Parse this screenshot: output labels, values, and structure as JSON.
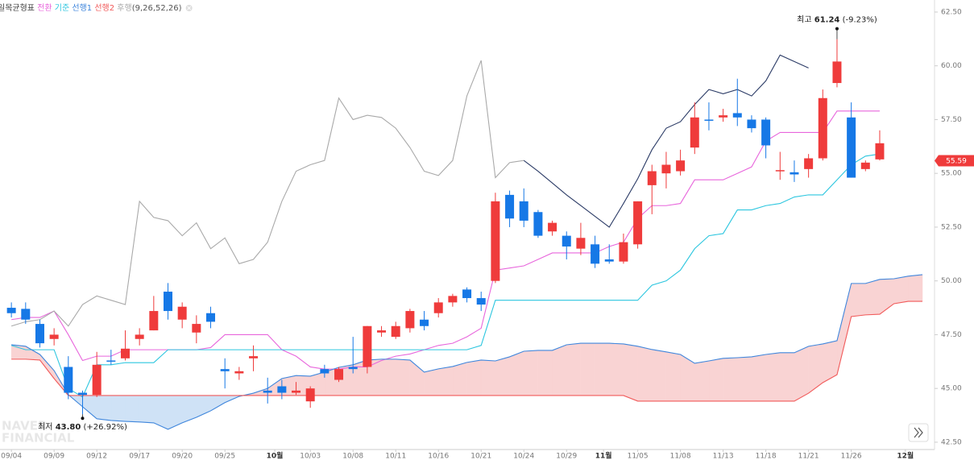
{
  "chart_data": {
    "type": "candlestick",
    "indicator": "일목균형표",
    "params": "(9,26,52,26)",
    "watermark": [
      "NAVER",
      "FINANCIAL"
    ],
    "candles": {
      "up_color": "#ef3b3b",
      "down_color": "#1678e6",
      "open": [
        48.75,
        48.7,
        48.0,
        47.3,
        46.0,
        44.8,
        44.7,
        46.3,
        46.4,
        47.3,
        47.7,
        49.5,
        48.2,
        47.6,
        48.5,
        45.9,
        45.7,
        46.4,
        44.9,
        45.1,
        44.8,
        44.4,
        45.9,
        45.4,
        46.0,
        46.0,
        47.6,
        47.4,
        47.8,
        48.2,
        48.5,
        49.0,
        49.6,
        49.2,
        50.0,
        54.0,
        53.7,
        53.2,
        52.3,
        52.1,
        51.5,
        51.7,
        51.0,
        50.9,
        51.7,
        54.45,
        55.0,
        55.1,
        56.2,
        57.5,
        57.6,
        57.8,
        57.5,
        57.5,
        55.1,
        55.05,
        55.2,
        55.7,
        59.2,
        57.6,
        55.2,
        55.65
      ],
      "high": [
        49.0,
        49.0,
        48.2,
        47.8,
        46.5,
        44.9,
        46.7,
        46.8,
        47.7,
        47.8,
        49.3,
        49.9,
        49.0,
        48.4,
        48.8,
        46.4,
        46.0,
        47.0,
        45.5,
        45.4,
        45.3,
        45.1,
        46.1,
        46.0,
        47.4,
        47.9,
        47.9,
        48.1,
        48.7,
        48.6,
        49.2,
        49.4,
        49.7,
        49.5,
        54.1,
        54.2,
        54.3,
        53.3,
        52.8,
        52.3,
        52.7,
        52.1,
        51.7,
        52.2,
        53.7,
        55.4,
        56.0,
        56.1,
        58.3,
        58.3,
        58.0,
        59.4,
        57.7,
        57.6,
        56.0,
        55.6,
        55.9,
        58.9,
        61.24,
        58.3,
        55.6,
        57.0
      ],
      "low": [
        48.3,
        48.0,
        46.9,
        47.0,
        44.5,
        43.8,
        44.6,
        46.1,
        46.3,
        47.0,
        47.7,
        48.2,
        47.8,
        47.1,
        47.8,
        45.0,
        45.4,
        45.8,
        44.3,
        44.5,
        44.7,
        44.1,
        45.5,
        45.3,
        45.7,
        45.7,
        47.4,
        47.3,
        47.6,
        47.7,
        48.3,
        48.8,
        49.0,
        48.6,
        49.9,
        52.5,
        52.5,
        52.0,
        52.1,
        51.0,
        51.2,
        50.6,
        50.8,
        50.8,
        51.5,
        53.1,
        54.3,
        54.9,
        55.9,
        57.0,
        57.4,
        57.2,
        56.9,
        55.7,
        54.7,
        54.6,
        54.8,
        55.6,
        59.0,
        54.8,
        55.1,
        55.6
      ],
      "close": [
        48.5,
        48.2,
        47.1,
        47.5,
        44.8,
        44.7,
        46.1,
        46.25,
        46.85,
        47.5,
        48.6,
        48.6,
        48.8,
        48.0,
        48.1,
        45.8,
        45.8,
        46.5,
        44.8,
        44.8,
        44.9,
        45.0,
        45.7,
        45.9,
        45.9,
        47.9,
        47.7,
        47.9,
        48.6,
        47.9,
        49.0,
        49.3,
        49.2,
        48.9,
        53.7,
        52.9,
        52.8,
        52.1,
        52.7,
        51.6,
        52.0,
        50.8,
        50.9,
        51.8,
        53.7,
        55.1,
        55.4,
        55.6,
        57.6,
        57.45,
        57.7,
        57.6,
        57.1,
        56.3,
        55.15,
        54.95,
        55.7,
        58.5,
        60.2,
        54.8,
        55.5,
        56.4
      ]
    },
    "series": [
      {
        "name": "전환",
        "color": "#e866dc",
        "values": [
          48.2,
          48.3,
          48.3,
          48.6,
          47.5,
          46.3,
          46.5,
          46.5,
          46.8,
          46.8,
          46.8,
          46.8,
          46.8,
          46.8,
          46.9,
          47.5,
          47.5,
          47.5,
          47.5,
          46.8,
          46.5,
          46.0,
          45.9,
          45.9,
          46.0,
          46.0,
          46.3,
          46.5,
          46.6,
          46.8,
          47.0,
          47.1,
          47.4,
          47.8,
          50.5,
          50.6,
          50.7,
          51.0,
          51.3,
          51.3,
          51.3,
          51.3,
          51.6,
          51.8,
          52.9,
          53.5,
          53.5,
          53.6,
          54.7,
          54.7,
          54.7,
          55.0,
          55.3,
          56.5,
          56.9,
          56.9,
          56.9,
          56.9,
          57.9,
          57.9,
          57.9,
          57.9
        ]
      },
      {
        "name": "기준",
        "color": "#2cc6df",
        "values": [
          47.0,
          46.8,
          46.8,
          46.8,
          45.0,
          44.6,
          46.1,
          46.1,
          46.2,
          46.2,
          46.2,
          46.8,
          46.8,
          46.8,
          46.8,
          46.8,
          46.8,
          46.8,
          46.8,
          46.8,
          46.8,
          46.8,
          46.8,
          46.8,
          46.8,
          46.8,
          46.8,
          46.8,
          46.8,
          46.8,
          46.8,
          46.8,
          46.8,
          47.0,
          49.1,
          49.1,
          49.1,
          49.1,
          49.1,
          49.1,
          49.1,
          49.1,
          49.1,
          49.1,
          49.1,
          49.8,
          50.0,
          50.5,
          51.5,
          52.1,
          52.2,
          53.3,
          53.3,
          53.5,
          53.6,
          53.9,
          54.0,
          54.0,
          54.7,
          55.4,
          55.8,
          55.9
        ]
      },
      {
        "name": "선행1",
        "color": "#3f86dc",
        "values": [
          47.03,
          46.96,
          46.58,
          45.83,
          44.71,
          44.15,
          43.59,
          43.51,
          43.47,
          43.44,
          43.4,
          43.1,
          43.4,
          43.66,
          43.96,
          44.34,
          44.63,
          44.78,
          45.0,
          45.46,
          45.6,
          45.57,
          45.76,
          45.98,
          46.1,
          46.32,
          46.36,
          46.36,
          46.32,
          45.76,
          45.91,
          46.02,
          46.21,
          46.32,
          46.28,
          46.47,
          46.73,
          46.77,
          46.77,
          47.03,
          47.1,
          47.1,
          47.1,
          47.07,
          46.96,
          46.81,
          46.7,
          46.58,
          46.17,
          46.28,
          46.4,
          46.43,
          46.47,
          46.58,
          46.66,
          46.66,
          46.96,
          47.07,
          47.22,
          49.88,
          49.88,
          50.07,
          50.1,
          50.22,
          50.29
        ]
      },
      {
        "name": "선행2",
        "color": "#f15a5a",
        "values": [
          46.36,
          46.36,
          46.32,
          45.46,
          44.67,
          44.67,
          44.67,
          44.67,
          44.67,
          44.67,
          44.67,
          44.67,
          44.67,
          44.67,
          44.67,
          44.67,
          44.67,
          44.67,
          44.67,
          44.67,
          44.67,
          44.67,
          44.67,
          44.67,
          44.67,
          44.67,
          44.67,
          44.67,
          44.67,
          44.67,
          44.67,
          44.67,
          44.67,
          44.67,
          44.67,
          44.67,
          44.67,
          44.67,
          44.67,
          44.67,
          44.67,
          44.67,
          44.67,
          44.67,
          44.41,
          44.41,
          44.41,
          44.41,
          44.41,
          44.41,
          44.41,
          44.41,
          44.41,
          44.41,
          44.41,
          44.41,
          44.78,
          45.27,
          45.64,
          48.34,
          48.42,
          48.45,
          48.94,
          49.05,
          49.05
        ]
      },
      {
        "name": "후행",
        "color": "#a9a9a9",
        "values": [
          47.9,
          48.1,
          48.2,
          48.6,
          47.9,
          48.9,
          49.3,
          49.1,
          48.9,
          53.7,
          52.95,
          52.8,
          52.1,
          52.7,
          51.5,
          52.0,
          50.8,
          51.0,
          51.8,
          53.7,
          55.1,
          55.4,
          55.6,
          58.5,
          57.5,
          57.7,
          57.6,
          57.1,
          56.2,
          55.1,
          54.9,
          55.6,
          58.6,
          60.25,
          54.8,
          55.5,
          55.6,
          null,
          null,
          null,
          null,
          null,
          null,
          null,
          null,
          null,
          null,
          null,
          null,
          null,
          null,
          null,
          null,
          null,
          null,
          null,
          null,
          null,
          null,
          null,
          null,
          null
        ]
      },
      {
        "color": "#2b3b66",
        "values": [
          null,
          null,
          null,
          null,
          null,
          null,
          null,
          null,
          null,
          null,
          null,
          null,
          null,
          null,
          null,
          null,
          null,
          null,
          null,
          null,
          null,
          null,
          null,
          null,
          null,
          null,
          null,
          null,
          null,
          null,
          null,
          null,
          null,
          null,
          null,
          null,
          55.6,
          55.1,
          54.55,
          54.0,
          53.5,
          53.0,
          52.5,
          53.6,
          54.75,
          56.1,
          57.1,
          57.4,
          58.2,
          58.9,
          58.7,
          58.9,
          58.6,
          59.3,
          60.5,
          60.2,
          59.9,
          null,
          null,
          null,
          null,
          null
        ]
      }
    ],
    "cloud_fill": {
      "above": "#f9d3d3",
      "below": "#cfe2f6"
    },
    "annotations": [
      {
        "text": "최고",
        "value": 61.24,
        "change": "(-9.23%)"
      },
      {
        "text": "최저",
        "value": 43.8,
        "value_label": "43.80",
        "change": "(+26.92%)"
      }
    ],
    "current_price": 55.59,
    "price_color": "#ef3b3b",
    "xlim": [
      -0.8,
      64.85
    ],
    "xticks": [
      {
        "value": 0,
        "label": "09/04"
      },
      {
        "value": 3,
        "label": "09/09"
      },
      {
        "value": 6,
        "label": "09/12"
      },
      {
        "value": 9,
        "label": "09/17"
      },
      {
        "value": 12,
        "label": "09/20"
      },
      {
        "value": 15,
        "label": "09/25"
      },
      {
        "value": 18.5,
        "label": "10월"
      },
      {
        "value": 21,
        "label": "10/03"
      },
      {
        "value": 24,
        "label": "10/08"
      },
      {
        "value": 27,
        "label": "10/11"
      },
      {
        "value": 30,
        "label": "10/16"
      },
      {
        "value": 33,
        "label": "10/21"
      },
      {
        "value": 36,
        "label": "10/24"
      },
      {
        "value": 39,
        "label": "10/29"
      },
      {
        "value": 41.6,
        "label": "11월"
      },
      {
        "value": 44,
        "label": "11/05"
      },
      {
        "value": 47,
        "label": "11/08"
      },
      {
        "value": 50,
        "label": "11/13"
      },
      {
        "value": 53,
        "label": "11/18"
      },
      {
        "value": 56,
        "label": "11/21"
      },
      {
        "value": 59,
        "label": "11/26"
      },
      {
        "value": 62.8,
        "label": "12월"
      }
    ],
    "ylim": [
      42.16,
      63.06
    ],
    "yticks": [
      {
        "value": 42.5,
        "label": "42.50"
      },
      {
        "value": 45,
        "label": "45.00"
      },
      {
        "value": 47.5,
        "label": "47.50"
      },
      {
        "value": 50,
        "label": "50.00"
      },
      {
        "value": 52.5,
        "label": "52.50"
      },
      {
        "value": 55,
        "label": "55.00"
      },
      {
        "value": 57.5,
        "label": "57.50"
      },
      {
        "value": 60,
        "label": "60.00"
      },
      {
        "value": 62.5,
        "label": "62.50"
      }
    ]
  }
}
